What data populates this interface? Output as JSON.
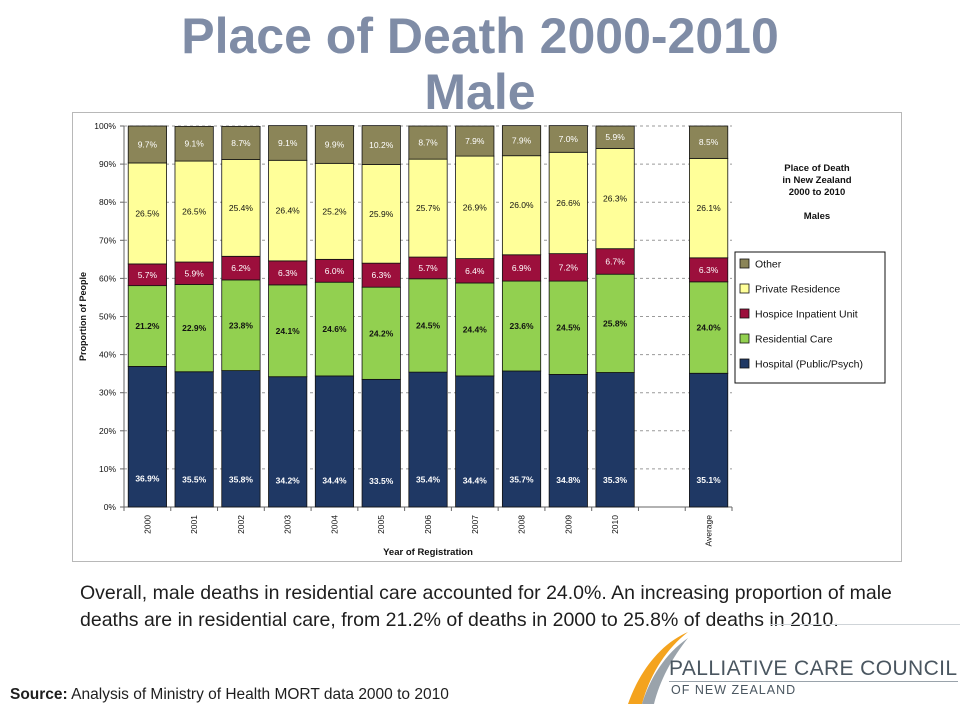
{
  "slide": {
    "title_line1": "Place of Death 2000-2010",
    "title_line2": "Male",
    "caption": "Overall, male deaths in residential care accounted for 24.0%. An increasing proportion of male deaths are in residential care, from 21.2% of deaths in 2000 to 25.8% of deaths in 2010.",
    "source_label": "Source:",
    "source_text": " Analysis of Ministry of Health MORT data 2000 to 2010"
  },
  "logo": {
    "main": "PALLIATIVE CARE COUNCIL",
    "sub": "OF NEW ZEALAND"
  },
  "chart_data": {
    "type": "bar",
    "stacked": true,
    "categories": [
      "2000",
      "2001",
      "2002",
      "2003",
      "2004",
      "2005",
      "2006",
      "2007",
      "2008",
      "2009",
      "2010",
      "Average"
    ],
    "gap_before_last": true,
    "series": [
      {
        "name": "Hospital (Public/Psych)",
        "color": "#1f3864",
        "label_color": "#ffffff",
        "values": [
          36.9,
          35.5,
          35.8,
          34.2,
          34.4,
          33.5,
          35.4,
          34.4,
          35.7,
          34.8,
          35.3,
          35.1
        ]
      },
      {
        "name": "Residential Care",
        "color": "#92d050",
        "label_color": "#111111",
        "values": [
          21.2,
          22.9,
          23.8,
          24.1,
          24.6,
          24.2,
          24.5,
          24.4,
          23.6,
          24.5,
          25.8,
          24.0
        ]
      },
      {
        "name": "Hospice Inpatient Unit",
        "color": "#9c0f3c",
        "label_color": "#ffffff",
        "values": [
          5.7,
          5.9,
          6.2,
          6.3,
          6.0,
          6.3,
          5.7,
          6.4,
          6.9,
          7.2,
          6.7,
          6.3
        ]
      },
      {
        "name": "Private Residence",
        "color": "#ffff99",
        "label_color": "#111111",
        "values": [
          26.5,
          26.5,
          25.4,
          26.4,
          25.2,
          25.9,
          25.7,
          26.9,
          26.0,
          26.6,
          26.3,
          26.1
        ]
      },
      {
        "name": "Other",
        "color": "#8b8558",
        "label_color": "#ffffff",
        "values": [
          9.7,
          9.1,
          8.7,
          9.1,
          9.9,
          10.2,
          8.7,
          7.9,
          7.9,
          7.0,
          5.9,
          8.5
        ]
      }
    ],
    "ylim": [
      0,
      100
    ],
    "yticks": [
      "0%",
      "10%",
      "20%",
      "30%",
      "40%",
      "50%",
      "60%",
      "70%",
      "80%",
      "90%",
      "100%"
    ],
    "ylabel": "Proportion of People",
    "xlabel": "Year of Registration",
    "inner_title": [
      "Place of Death",
      "in New Zealand",
      "2000 to 2010",
      "",
      "Males"
    ],
    "legend_position": "right",
    "grid": "horizontal-dashed"
  }
}
